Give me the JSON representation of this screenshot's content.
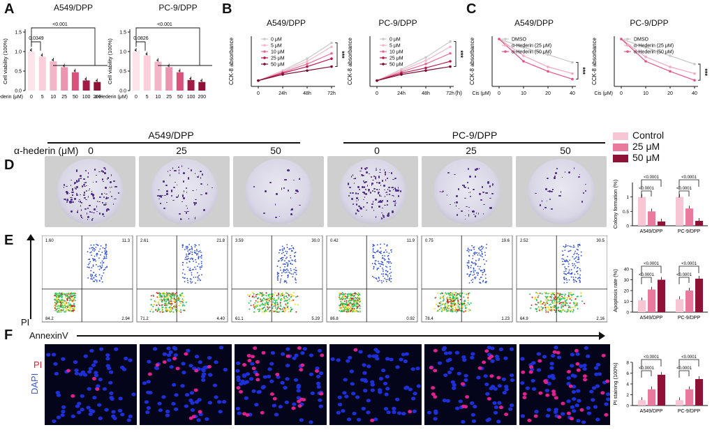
{
  "panel_labels": {
    "a": "A",
    "b": "B",
    "c": "C",
    "d": "D",
    "e": "E",
    "f": "F"
  },
  "panelA": {
    "left_title": "A549/DPP",
    "right_title": "PC-9/DPP",
    "ylabel": "Cell viability (100%)",
    "xprefix": "α-Hederin (μM)",
    "pvals_left": [
      "<0.001",
      "0.0349"
    ],
    "pvals_right": [
      "<0.001",
      "0.0826"
    ],
    "yticks": [
      "0.0",
      "0.5",
      "1.0",
      "1.5"
    ]
  },
  "panelB": {
    "left_title": "A549/DPP",
    "right_title": "PC-9/DPP",
    "ylabel": "CCK-8 absorbance",
    "xticks": [
      "0",
      "24h",
      "48h",
      "72h"
    ],
    "xunit": "(h)",
    "sig": "***",
    "legend": [
      "0 μM",
      "5 μM",
      "10 μM",
      "25 μM",
      "50 μM"
    ]
  },
  "panelC": {
    "left_title": "A549/DPP",
    "right_title": "PC-9/DPP",
    "ylabel": "CCK-8 absorbance",
    "xprefix": "Cis (μM)",
    "xticks": [
      "0",
      "10",
      "20",
      "40"
    ],
    "sig": "***",
    "legend": [
      "DMSO",
      "α-Hederin (25 μM)",
      "α-Hederin (50 μM)"
    ]
  },
  "panelD": {
    "group_left": "A549/DPP",
    "group_right": "PC-9/DPP",
    "dose_label": "α-hederin (μM)",
    "doses": [
      "0",
      "25",
      "50",
      "0",
      "25",
      "50"
    ],
    "legend": [
      "Control",
      "25 μM",
      "50 μM"
    ],
    "bar_ylabel": "Colony formation (%)",
    "bar_pvals": [
      "<0.0001",
      "<0.0001",
      "<0.0001",
      "<0.0001"
    ],
    "bar_groups": [
      "A549/DPP",
      "PC-9/DPP"
    ]
  },
  "panelE": {
    "ylabel": "PI",
    "xlabel": "AnnexinV",
    "quadrants": [
      {
        "ul": "1.60",
        "ur": "11.3",
        "ll": "84.2",
        "lr": "2.94"
      },
      {
        "ul": "2.61",
        "ur": "21.8",
        "ll": "71.2",
        "lr": "4.40"
      },
      {
        "ul": "3.59",
        "ur": "30.0",
        "ll": "61.1",
        "lr": "5.29"
      },
      {
        "ul": "0.42",
        "ur": "11.9",
        "ll": "86.8",
        "lr": "0.92"
      },
      {
        "ul": "0.75",
        "ur": "19.6",
        "ll": "78.4",
        "lr": "1.23"
      },
      {
        "ul": "2.52",
        "ur": "30.5",
        "ll": "64.9",
        "lr": "2.16"
      }
    ],
    "bar_ylabel": "Apoptosis rate (%)",
    "bar_pvals": [
      "<0.0001",
      "<0.0001",
      "<0.0001",
      "<0.0001"
    ],
    "bar_groups": [
      "A549/DPP",
      "PC-9/DPP"
    ]
  },
  "panelF": {
    "pi_label": "PI",
    "dapi_label": "DAPI",
    "bar_ylabel": "PI staining (100%)",
    "bar_pvals": [
      "<0.0001",
      "<0.0001",
      "<0.0001",
      "<0.0001"
    ],
    "bar_groups": [
      "A549/DPP",
      "PC-9/DPP"
    ]
  },
  "colors": {
    "control": "#f6c6d4",
    "mid": "#e97a9e",
    "high": "#8e1236",
    "c0": "#c8c8c8",
    "c5": "#f4b5c8",
    "c10": "#e96a94",
    "c25": "#b8144a",
    "c50": "#7a0b30"
  },
  "chart_data": [
    {
      "type": "bar",
      "id": "A-left",
      "categories": [
        "0",
        "5",
        "10",
        "25",
        "50",
        "100",
        "200"
      ],
      "values": [
        1.0,
        0.87,
        0.75,
        0.6,
        0.47,
        0.26,
        0.22
      ],
      "ylabel": "Cell viability (100%)",
      "ylim": [
        0,
        1.5
      ]
    },
    {
      "type": "bar",
      "id": "A-right",
      "categories": [
        "0",
        "5",
        "10",
        "25",
        "50",
        "100",
        "200"
      ],
      "values": [
        1.0,
        0.9,
        0.74,
        0.6,
        0.47,
        0.27,
        0.22
      ],
      "ylabel": "Cell viability (100%)",
      "ylim": [
        0,
        1.5
      ]
    },
    {
      "type": "line",
      "id": "B-left",
      "x": [
        "0",
        "24h",
        "48h",
        "72h"
      ],
      "series": [
        {
          "name": "0 μM",
          "values": [
            0.22,
            0.6,
            1.05,
            1.65
          ]
        },
        {
          "name": "5 μM",
          "values": [
            0.22,
            0.57,
            0.95,
            1.5
          ]
        },
        {
          "name": "10 μM",
          "values": [
            0.22,
            0.53,
            0.85,
            1.25
          ]
        },
        {
          "name": "25 μM",
          "values": [
            0.22,
            0.5,
            0.75,
            1.05
          ]
        },
        {
          "name": "50 μM",
          "values": [
            0.22,
            0.45,
            0.6,
            0.75
          ]
        }
      ]
    },
    {
      "type": "line",
      "id": "B-right",
      "x": [
        "0",
        "24h",
        "48h",
        "72h"
      ],
      "series": [
        {
          "name": "0 μM",
          "values": [
            0.22,
            0.65,
            1.1,
            1.7
          ]
        },
        {
          "name": "5 μM",
          "values": [
            0.22,
            0.6,
            0.98,
            1.5
          ]
        },
        {
          "name": "10 μM",
          "values": [
            0.22,
            0.55,
            0.85,
            1.25
          ]
        },
        {
          "name": "25 μM",
          "values": [
            0.22,
            0.5,
            0.7,
            0.95
          ]
        },
        {
          "name": "50 μM",
          "values": [
            0.22,
            0.45,
            0.6,
            0.75
          ]
        }
      ]
    },
    {
      "type": "line",
      "id": "C-left",
      "x": [
        "0",
        "10",
        "20",
        "40"
      ],
      "series": [
        {
          "name": "DMSO",
          "values": [
            1.0,
            0.85,
            0.72,
            0.58
          ]
        },
        {
          "name": "α-Hederin (25 μM)",
          "values": [
            1.0,
            0.7,
            0.5,
            0.38
          ]
        },
        {
          "name": "α-Hederin (50 μM)",
          "values": [
            1.0,
            0.6,
            0.42,
            0.28
          ]
        }
      ]
    },
    {
      "type": "line",
      "id": "C-right",
      "x": [
        "0",
        "10",
        "20",
        "40"
      ],
      "series": [
        {
          "name": "DMSO",
          "values": [
            1.0,
            0.85,
            0.7,
            0.55
          ]
        },
        {
          "name": "α-Hederin (25 μM)",
          "values": [
            1.0,
            0.68,
            0.5,
            0.38
          ]
        },
        {
          "name": "α-Hederin (50 μM)",
          "values": [
            1.0,
            0.6,
            0.42,
            0.26
          ]
        }
      ]
    },
    {
      "type": "bar",
      "id": "D-bars",
      "categories": [
        "A549/DPP",
        "PC-9/DPP"
      ],
      "series": [
        {
          "name": "Control",
          "values": [
            1.0,
            1.0
          ]
        },
        {
          "name": "25 μM",
          "values": [
            0.5,
            0.6
          ]
        },
        {
          "name": "50 μM",
          "values": [
            0.15,
            0.17
          ]
        }
      ],
      "ylabel": "Colony formation (%)"
    },
    {
      "type": "bar",
      "id": "E-bars",
      "categories": [
        "A549/DPP",
        "PC-9/DPP"
      ],
      "series": [
        {
          "name": "Control",
          "values": [
            11,
            12
          ]
        },
        {
          "name": "25 μM",
          "values": [
            21,
            20
          ]
        },
        {
          "name": "50 μM",
          "values": [
            30,
            31
          ]
        }
      ],
      "ylabel": "Apoptosis rate (%)",
      "ylim": [
        0,
        40
      ]
    },
    {
      "type": "bar",
      "id": "F-bars",
      "categories": [
        "A549/DPP",
        "PC-9/DPP"
      ],
      "series": [
        {
          "name": "Control",
          "values": [
            1.0,
            1.0
          ]
        },
        {
          "name": "25 μM",
          "values": [
            3.0,
            3.0
          ]
        },
        {
          "name": "50 μM",
          "values": [
            5.7,
            4.9
          ]
        }
      ],
      "ylabel": "PI staining (100%)",
      "ylim": [
        0,
        8
      ]
    }
  ]
}
